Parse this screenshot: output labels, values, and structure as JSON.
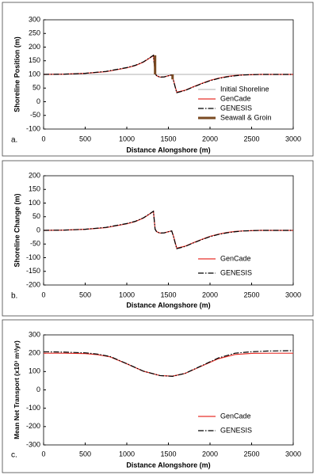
{
  "chart_data": [
    {
      "type": "line",
      "panel_label": "a.",
      "ylabel": "Shoreline Position (m)",
      "xlabel": "Distance Alongshore (m)",
      "xlim": [
        0,
        3000
      ],
      "xticks": [
        0,
        500,
        1000,
        1500,
        2000,
        2500,
        3000
      ],
      "ylim": [
        -100,
        300
      ],
      "yticks": [
        -100,
        -50,
        0,
        50,
        100,
        150,
        200,
        250,
        300
      ],
      "legend": "lower right",
      "x": [
        0,
        250,
        500,
        750,
        1000,
        1100,
        1200,
        1250,
        1300,
        1320,
        1340,
        1360,
        1400,
        1450,
        1500,
        1540,
        1560,
        1600,
        1700,
        1800,
        1900,
        2000,
        2100,
        2200,
        2300,
        2400,
        2500,
        2600,
        2800,
        3000
      ],
      "series": [
        {
          "name": "Initial Shoreline",
          "color": "#b0b0b0",
          "linestyle": "solid",
          "linewidth": 1,
          "x": [
            0,
            3000
          ],
          "values": [
            100,
            100
          ]
        },
        {
          "name": "GenCade",
          "color": "#e8312a",
          "linestyle": "solid",
          "linewidth": 1.2,
          "values": [
            100,
            101,
            104,
            110,
            124,
            132,
            145,
            155,
            165,
            170,
            105,
            95,
            90,
            91,
            95,
            98,
            80,
            35,
            42,
            55,
            67,
            78,
            86,
            92,
            96,
            98,
            99,
            100,
            100,
            100
          ]
        },
        {
          "name": "GENESIS",
          "color": "#000000",
          "linestyle": "dashdot",
          "linewidth": 1.2,
          "values": [
            100,
            101,
            104,
            111,
            125,
            133,
            146,
            156,
            166,
            170,
            104,
            94,
            90,
            91,
            95,
            98,
            78,
            33,
            41,
            54,
            66,
            77,
            85,
            91,
            95,
            98,
            99,
            100,
            100,
            100
          ]
        },
        {
          "name": "Seawall & Groin",
          "color": "#7a4a22",
          "linestyle": "solid",
          "linewidth": 3,
          "x": [
            1340,
            1340,
            1450,
            1550,
            1550
          ],
          "values": [
            170,
            100,
            null,
            100,
            82
          ]
        }
      ]
    },
    {
      "type": "line",
      "panel_label": "b.",
      "ylabel": "Shoreline Change (m)",
      "xlabel": "Distance Alongshore (m)",
      "xlim": [
        0,
        3000
      ],
      "xticks": [
        0,
        500,
        1000,
        1500,
        2000,
        2500,
        3000
      ],
      "ylim": [
        -200,
        200
      ],
      "yticks": [
        -200,
        -150,
        -100,
        -50,
        0,
        50,
        100,
        150,
        200
      ],
      "legend": "lower right",
      "x": [
        0,
        250,
        500,
        750,
        1000,
        1100,
        1200,
        1250,
        1300,
        1320,
        1340,
        1360,
        1400,
        1450,
        1500,
        1540,
        1560,
        1600,
        1700,
        1800,
        1900,
        2000,
        2100,
        2200,
        2300,
        2400,
        2500,
        2600,
        2800,
        3000
      ],
      "series": [
        {
          "name": "GenCade",
          "color": "#e8312a",
          "linestyle": "solid",
          "linewidth": 1.2,
          "values": [
            0,
            1,
            4,
            10,
            24,
            32,
            45,
            55,
            65,
            70,
            5,
            -5,
            -10,
            -9,
            -5,
            -2,
            -20,
            -65,
            -58,
            -45,
            -33,
            -22,
            -14,
            -8,
            -4,
            -2,
            -1,
            0,
            0,
            0
          ]
        },
        {
          "name": "GENESIS",
          "color": "#000000",
          "linestyle": "dashdot",
          "linewidth": 1.2,
          "values": [
            0,
            1,
            4,
            11,
            25,
            33,
            46,
            56,
            66,
            70,
            4,
            -6,
            -10,
            -9,
            -5,
            -2,
            -22,
            -67,
            -59,
            -46,
            -34,
            -23,
            -15,
            -9,
            -5,
            -2,
            -1,
            0,
            0,
            0
          ]
        }
      ]
    },
    {
      "type": "line",
      "panel_label": "c.",
      "ylabel": "Mean Net Transport (x10³ m³/yr)",
      "xlabel": "Distance Alongshore (m)",
      "xlim": [
        0,
        3000
      ],
      "xticks": [
        0,
        500,
        1000,
        1500,
        2000,
        2500,
        3000
      ],
      "ylim": [
        -300,
        300
      ],
      "yticks": [
        -300,
        -200,
        -100,
        0,
        100,
        200,
        300
      ],
      "legend": "lower right",
      "x": [
        0,
        250,
        500,
        650,
        800,
        1000,
        1200,
        1400,
        1550,
        1700,
        1900,
        2100,
        2300,
        2500,
        2700,
        3000
      ],
      "series": [
        {
          "name": "GenCade",
          "color": "#e8312a",
          "linestyle": "solid",
          "linewidth": 1.2,
          "values": [
            200,
            200,
            198,
            192,
            180,
            142,
            102,
            78,
            75,
            90,
            130,
            170,
            193,
            199,
            200,
            200
          ]
        },
        {
          "name": "GENESIS",
          "color": "#000000",
          "linestyle": "dashdot",
          "linewidth": 1.2,
          "values": [
            208,
            206,
            202,
            195,
            182,
            143,
            102,
            78,
            74,
            90,
            132,
            174,
            200,
            208,
            212,
            214
          ]
        }
      ]
    }
  ]
}
